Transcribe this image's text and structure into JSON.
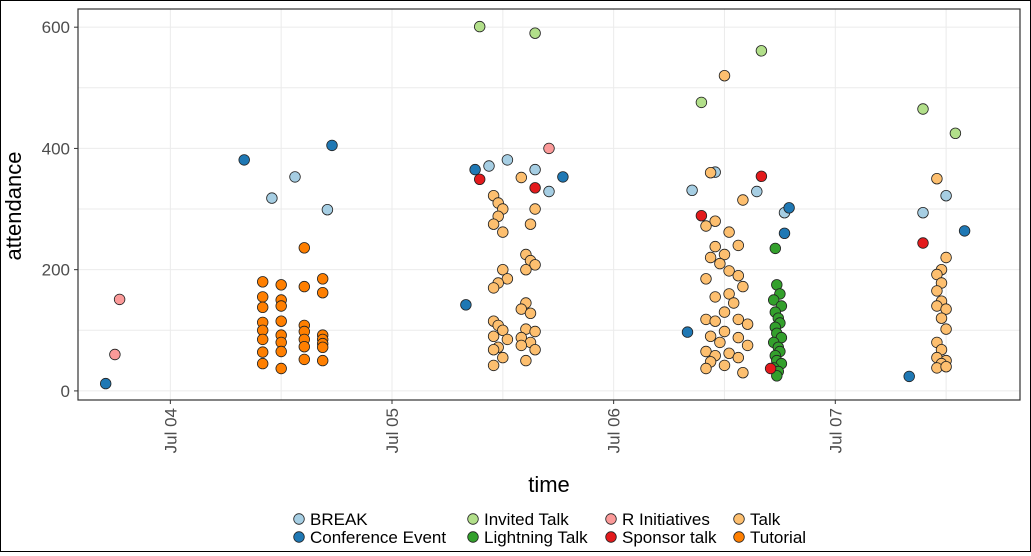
{
  "chart_data": {
    "type": "scatter",
    "title": "",
    "xlabel": "time",
    "ylabel": "attendance",
    "x_ticks": [
      "Jul 04",
      "Jul 05",
      "Jul 06",
      "Jul 07"
    ],
    "y_ticks": [
      0,
      200,
      400,
      600
    ],
    "xlim": [
      "2018-07-03 14:00",
      "2018-07-07 20:00"
    ],
    "ylim": [
      -15,
      630
    ],
    "grid": true,
    "legend_position": "bottom",
    "series": [
      {
        "name": "BREAK",
        "color": "#A6CEE3",
        "points": [
          [
            "2018-07-04 11:00",
            318
          ],
          [
            "2018-07-04 13:30",
            353
          ],
          [
            "2018-07-04 17:00",
            299
          ],
          [
            "2018-07-05 10:30",
            371
          ],
          [
            "2018-07-05 12:30",
            381
          ],
          [
            "2018-07-05 15:30",
            365
          ],
          [
            "2018-07-05 17:00",
            329
          ],
          [
            "2018-07-06 08:30",
            331
          ],
          [
            "2018-07-06 11:00",
            361
          ],
          [
            "2018-07-06 15:30",
            329
          ],
          [
            "2018-07-06 18:30",
            294
          ],
          [
            "2018-07-07 09:30",
            294
          ],
          [
            "2018-07-07 12:00",
            322
          ]
        ]
      },
      {
        "name": "Conference Event",
        "color": "#1F78B4",
        "points": [
          [
            "2018-07-03 17:00",
            12
          ],
          [
            "2018-07-04 08:00",
            381
          ],
          [
            "2018-07-04 17:30",
            405
          ],
          [
            "2018-07-05 08:00",
            142
          ],
          [
            "2018-07-05 09:00",
            365
          ],
          [
            "2018-07-05 18:30",
            353
          ],
          [
            "2018-07-06 08:00",
            97
          ],
          [
            "2018-07-06 18:30",
            260
          ],
          [
            "2018-07-06 19:00",
            302
          ],
          [
            "2018-07-07 08:00",
            24
          ],
          [
            "2018-07-07 14:00",
            264
          ]
        ]
      },
      {
        "name": "Invited Talk",
        "color": "#B2DF8A",
        "points": [
          [
            "2018-07-05 09:30",
            601
          ],
          [
            "2018-07-05 15:30",
            590
          ],
          [
            "2018-07-06 09:30",
            476
          ],
          [
            "2018-07-06 16:00",
            561
          ],
          [
            "2018-07-07 09:30",
            465
          ],
          [
            "2018-07-07 13:00",
            425
          ]
        ]
      },
      {
        "name": "Lightning Talk",
        "color": "#33A02C",
        "points": [
          [
            "2018-07-06 17:30",
            235
          ],
          [
            "2018-07-06 17:40",
            175
          ],
          [
            "2018-07-06 18:00",
            160
          ],
          [
            "2018-07-06 17:20",
            150
          ],
          [
            "2018-07-06 18:10",
            140
          ],
          [
            "2018-07-06 17:30",
            130
          ],
          [
            "2018-07-06 17:50",
            120
          ],
          [
            "2018-07-06 18:00",
            112
          ],
          [
            "2018-07-06 17:30",
            105
          ],
          [
            "2018-07-06 17:40",
            95
          ],
          [
            "2018-07-06 18:10",
            88
          ],
          [
            "2018-07-06 17:20",
            80
          ],
          [
            "2018-07-06 17:50",
            72
          ],
          [
            "2018-07-06 18:00",
            65
          ],
          [
            "2018-07-06 17:30",
            58
          ],
          [
            "2018-07-06 17:40",
            50
          ],
          [
            "2018-07-06 18:10",
            45
          ],
          [
            "2018-07-06 17:20",
            38
          ],
          [
            "2018-07-06 17:50",
            32
          ],
          [
            "2018-07-06 17:40",
            25
          ]
        ]
      },
      {
        "name": "R Initiatives",
        "color": "#FB9A99",
        "points": [
          [
            "2018-07-03 18:30",
            151
          ],
          [
            "2018-07-03 18:00",
            60
          ],
          [
            "2018-07-05 17:00",
            400
          ]
        ]
      },
      {
        "name": "Sponsor talk",
        "color": "#E31A1C",
        "points": [
          [
            "2018-07-05 09:30",
            349
          ],
          [
            "2018-07-05 15:30",
            335
          ],
          [
            "2018-07-06 09:30",
            289
          ],
          [
            "2018-07-06 16:00",
            354
          ],
          [
            "2018-07-06 17:00",
            37
          ],
          [
            "2018-07-07 09:30",
            244
          ]
        ]
      },
      {
        "name": "Talk",
        "color": "#FDBF6F",
        "points": [
          [
            "2018-07-05 11:00",
            322
          ],
          [
            "2018-07-05 11:30",
            310
          ],
          [
            "2018-07-05 12:00",
            300
          ],
          [
            "2018-07-05 11:30",
            288
          ],
          [
            "2018-07-05 11:00",
            275
          ],
          [
            "2018-07-05 12:00",
            262
          ],
          [
            "2018-07-05 14:00",
            352
          ],
          [
            "2018-07-05 15:30",
            300
          ],
          [
            "2018-07-05 15:00",
            275
          ],
          [
            "2018-07-05 14:30",
            225
          ],
          [
            "2018-07-05 15:00",
            215
          ],
          [
            "2018-07-05 15:30",
            208
          ],
          [
            "2018-07-05 14:30",
            200
          ],
          [
            "2018-07-05 12:00",
            200
          ],
          [
            "2018-07-05 12:30",
            185
          ],
          [
            "2018-07-05 11:30",
            178
          ],
          [
            "2018-07-05 11:00",
            170
          ],
          [
            "2018-07-05 14:30",
            145
          ],
          [
            "2018-07-05 14:00",
            135
          ],
          [
            "2018-07-05 15:00",
            128
          ],
          [
            "2018-07-05 11:00",
            115
          ],
          [
            "2018-07-05 11:30",
            108
          ],
          [
            "2018-07-05 12:00",
            100
          ],
          [
            "2018-07-05 14:30",
            102
          ],
          [
            "2018-07-05 15:30",
            98
          ],
          [
            "2018-07-05 11:00",
            90
          ],
          [
            "2018-07-05 12:30",
            85
          ],
          [
            "2018-07-05 14:00",
            88
          ],
          [
            "2018-07-05 15:00",
            80
          ],
          [
            "2018-07-05 11:30",
            72
          ],
          [
            "2018-07-05 11:00",
            68
          ],
          [
            "2018-07-05 14:00",
            75
          ],
          [
            "2018-07-05 15:30",
            68
          ],
          [
            "2018-07-05 12:00",
            55
          ],
          [
            "2018-07-05 14:30",
            50
          ],
          [
            "2018-07-05 11:00",
            42
          ],
          [
            "2018-07-06 12:00",
            520
          ],
          [
            "2018-07-06 10:30",
            360
          ],
          [
            "2018-07-06 14:00",
            315
          ],
          [
            "2018-07-06 11:00",
            280
          ],
          [
            "2018-07-06 10:00",
            272
          ],
          [
            "2018-07-06 12:30",
            262
          ],
          [
            "2018-07-06 11:00",
            238
          ],
          [
            "2018-07-06 13:30",
            240
          ],
          [
            "2018-07-06 12:00",
            225
          ],
          [
            "2018-07-06 10:30",
            220
          ],
          [
            "2018-07-06 11:30",
            210
          ],
          [
            "2018-07-06 12:30",
            198
          ],
          [
            "2018-07-06 13:30",
            190
          ],
          [
            "2018-07-06 10:00",
            185
          ],
          [
            "2018-07-06 14:00",
            172
          ],
          [
            "2018-07-06 12:30",
            160
          ],
          [
            "2018-07-06 11:00",
            155
          ],
          [
            "2018-07-06 13:00",
            145
          ],
          [
            "2018-07-06 12:00",
            130
          ],
          [
            "2018-07-06 10:00",
            118
          ],
          [
            "2018-07-06 11:00",
            115
          ],
          [
            "2018-07-06 13:30",
            118
          ],
          [
            "2018-07-06 14:30",
            110
          ],
          [
            "2018-07-06 12:00",
            98
          ],
          [
            "2018-07-06 10:30",
            90
          ],
          [
            "2018-07-06 13:30",
            88
          ],
          [
            "2018-07-06 11:30",
            80
          ],
          [
            "2018-07-06 14:30",
            75
          ],
          [
            "2018-07-06 10:00",
            65
          ],
          [
            "2018-07-06 12:30",
            62
          ],
          [
            "2018-07-06 11:00",
            58
          ],
          [
            "2018-07-06 13:30",
            55
          ],
          [
            "2018-07-06 10:30",
            48
          ],
          [
            "2018-07-06 12:00",
            42
          ],
          [
            "2018-07-06 14:00",
            30
          ],
          [
            "2018-07-06 10:00",
            37
          ],
          [
            "2018-07-07 11:00",
            350
          ],
          [
            "2018-07-07 12:00",
            220
          ],
          [
            "2018-07-07 11:30",
            200
          ],
          [
            "2018-07-07 11:00",
            192
          ],
          [
            "2018-07-07 11:30",
            178
          ],
          [
            "2018-07-07 11:00",
            165
          ],
          [
            "2018-07-07 11:30",
            148
          ],
          [
            "2018-07-07 11:00",
            140
          ],
          [
            "2018-07-07 12:00",
            135
          ],
          [
            "2018-07-07 11:30",
            120
          ],
          [
            "2018-07-07 12:00",
            102
          ],
          [
            "2018-07-07 11:00",
            80
          ],
          [
            "2018-07-07 11:30",
            68
          ],
          [
            "2018-07-07 11:00",
            55
          ],
          [
            "2018-07-07 12:00",
            50
          ],
          [
            "2018-07-07 11:30",
            45
          ],
          [
            "2018-07-07 11:00",
            38
          ],
          [
            "2018-07-07 12:00",
            40
          ]
        ]
      },
      {
        "name": "Tutorial",
        "color": "#FF7F00",
        "points": [
          [
            "2018-07-04 10:00",
            180
          ],
          [
            "2018-07-04 10:00",
            155
          ],
          [
            "2018-07-04 10:00",
            138
          ],
          [
            "2018-07-04 10:00",
            113
          ],
          [
            "2018-07-04 10:00",
            100
          ],
          [
            "2018-07-04 10:00",
            85
          ],
          [
            "2018-07-04 10:00",
            64
          ],
          [
            "2018-07-04 10:00",
            45
          ],
          [
            "2018-07-04 12:00",
            175
          ],
          [
            "2018-07-04 12:00",
            150
          ],
          [
            "2018-07-04 12:00",
            140
          ],
          [
            "2018-07-04 12:00",
            115
          ],
          [
            "2018-07-04 12:00",
            92
          ],
          [
            "2018-07-04 12:00",
            80
          ],
          [
            "2018-07-04 12:00",
            65
          ],
          [
            "2018-07-04 12:00",
            37
          ],
          [
            "2018-07-04 14:30",
            236
          ],
          [
            "2018-07-04 14:30",
            172
          ],
          [
            "2018-07-04 14:30",
            108
          ],
          [
            "2018-07-04 14:30",
            98
          ],
          [
            "2018-07-04 14:30",
            85
          ],
          [
            "2018-07-04 14:30",
            73
          ],
          [
            "2018-07-04 14:30",
            52
          ],
          [
            "2018-07-04 16:30",
            185
          ],
          [
            "2018-07-04 16:30",
            162
          ],
          [
            "2018-07-04 16:30",
            92
          ],
          [
            "2018-07-04 16:30",
            85
          ],
          [
            "2018-07-04 16:30",
            78
          ],
          [
            "2018-07-04 16:30",
            72
          ],
          [
            "2018-07-04 16:30",
            50
          ]
        ]
      }
    ]
  }
}
